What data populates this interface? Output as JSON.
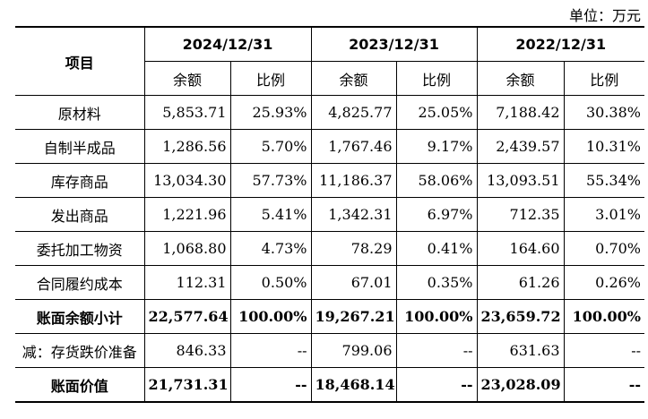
{
  "unit_label": "单位：万元",
  "header": {
    "item": "项目",
    "years": [
      "2024/12/31",
      "2023/12/31",
      "2022/12/31"
    ],
    "balance": "余额",
    "ratio": "比例"
  },
  "rows": [
    {
      "label": "原材料",
      "cells": [
        "5,853.71",
        "25.93%",
        "4,825.77",
        "25.05%",
        "7,188.42",
        "30.38%"
      ]
    },
    {
      "label": "自制半成品",
      "cells": [
        "1,286.56",
        "5.70%",
        "1,767.46",
        "9.17%",
        "2,439.57",
        "10.31%"
      ]
    },
    {
      "label": "库存商品",
      "cells": [
        "13,034.30",
        "57.73%",
        "11,186.37",
        "58.06%",
        "13,093.51",
        "55.34%"
      ]
    },
    {
      "label": "发出商品",
      "cells": [
        "1,221.96",
        "5.41%",
        "1,342.31",
        "6.97%",
        "712.35",
        "3.01%"
      ]
    },
    {
      "label": "委托加工物资",
      "cells": [
        "1,068.80",
        "4.73%",
        "78.29",
        "0.41%",
        "164.60",
        "0.70%"
      ]
    },
    {
      "label": "合同履约成本",
      "cells": [
        "112.31",
        "0.50%",
        "67.01",
        "0.35%",
        "61.26",
        "0.26%"
      ]
    },
    {
      "label": "账面余额小计",
      "cells": [
        "22,577.64",
        "100.00%",
        "19,267.21",
        "100.00%",
        "23,659.72",
        "100.00%"
      ]
    },
    {
      "label": "减：存货跌价准备",
      "cells": [
        "846.33",
        "--",
        "799.06",
        "--",
        "631.63",
        "--"
      ]
    },
    {
      "label": "账面价值",
      "cells": [
        "21,731.31",
        "--",
        "18,468.14",
        "--",
        "23,028.09",
        "--"
      ]
    }
  ]
}
